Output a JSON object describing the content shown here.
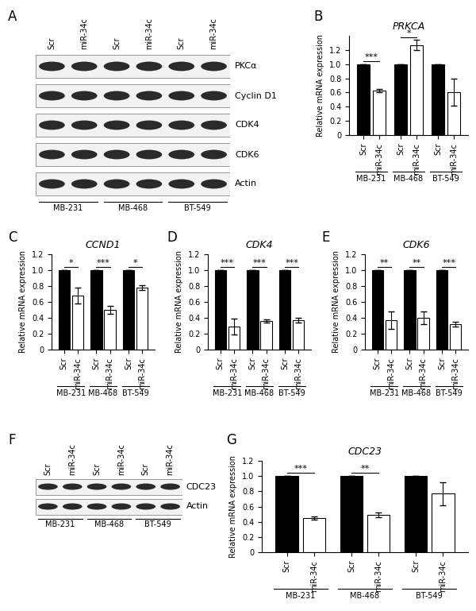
{
  "chart_data": [
    {
      "panel": "B",
      "type": "bar",
      "title": "PRKCA",
      "y_label": "Relative mRNA expression",
      "categories": [
        "MB-231",
        "MB-468",
        "BT-549"
      ],
      "series": [
        {
          "name": "Scr",
          "color": "#000000",
          "values": [
            1.0,
            1.0,
            1.0
          ],
          "errors": [
            0,
            0,
            0
          ]
        },
        {
          "name": "miR-34c",
          "color": "#ffffff",
          "values": [
            0.63,
            1.27,
            0.61
          ],
          "errors": [
            0.02,
            0.07,
            0.19
          ]
        }
      ],
      "significance": [
        "***",
        "*",
        null
      ],
      "ylim": [
        0,
        1.4
      ],
      "yticks": [
        0,
        0.2,
        0.4,
        0.6,
        0.8,
        1.0,
        1.2
      ]
    },
    {
      "panel": "C",
      "type": "bar",
      "title": "CCND1",
      "y_label": "Relative mRNA expression",
      "categories": [
        "MB-231",
        "MB-468",
        "BT-549"
      ],
      "series": [
        {
          "name": "Scr",
          "color": "#000000",
          "values": [
            1.0,
            1.0,
            1.0
          ],
          "errors": [
            0,
            0,
            0
          ]
        },
        {
          "name": "miR-34c",
          "color": "#ffffff",
          "values": [
            0.68,
            0.5,
            0.78
          ],
          "errors": [
            0.1,
            0.05,
            0.03
          ]
        }
      ],
      "significance": [
        "*",
        "***",
        "*"
      ],
      "ylim": [
        0,
        1.2
      ],
      "yticks": [
        0,
        0.2,
        0.4,
        0.6,
        0.8,
        1.0,
        1.2
      ]
    },
    {
      "panel": "D",
      "type": "bar",
      "title": "CDK4",
      "y_label": "Relative mRNA expression",
      "categories": [
        "MB-231",
        "MB-468",
        "BT-549"
      ],
      "series": [
        {
          "name": "Scr",
          "color": "#000000",
          "values": [
            1.0,
            1.0,
            1.0
          ],
          "errors": [
            0,
            0,
            0
          ]
        },
        {
          "name": "miR-34c",
          "color": "#ffffff",
          "values": [
            0.29,
            0.36,
            0.37
          ],
          "errors": [
            0.1,
            0.02,
            0.03
          ]
        }
      ],
      "significance": [
        "***",
        "***",
        "***"
      ],
      "ylim": [
        0,
        1.2
      ],
      "yticks": [
        0,
        0.2,
        0.4,
        0.6,
        0.8,
        1.0,
        1.2
      ]
    },
    {
      "panel": "E",
      "type": "bar",
      "title": "CDK6",
      "y_label": "Relative mRNA expression",
      "categories": [
        "MB-231",
        "MB-468",
        "BT-549"
      ],
      "series": [
        {
          "name": "Scr",
          "color": "#000000",
          "values": [
            1.0,
            1.0,
            1.0
          ],
          "errors": [
            0,
            0,
            0
          ]
        },
        {
          "name": "miR-34c",
          "color": "#ffffff",
          "values": [
            0.37,
            0.4,
            0.32
          ],
          "errors": [
            0.11,
            0.08,
            0.03
          ]
        }
      ],
      "significance": [
        "**",
        "**",
        "***"
      ],
      "ylim": [
        0,
        1.2
      ],
      "yticks": [
        0,
        0.2,
        0.4,
        0.6,
        0.8,
        1.0,
        1.2
      ]
    },
    {
      "panel": "G",
      "type": "bar",
      "title": "CDC23",
      "y_label": "Relative mRNA expression",
      "categories": [
        "MB-231",
        "MB-468",
        "BT-549"
      ],
      "series": [
        {
          "name": "Scr",
          "color": "#000000",
          "values": [
            1.0,
            1.0,
            1.0
          ],
          "errors": [
            0,
            0,
            0
          ]
        },
        {
          "name": "miR-34c",
          "color": "#ffffff",
          "values": [
            0.45,
            0.49,
            0.77
          ],
          "errors": [
            0.02,
            0.03,
            0.15
          ]
        }
      ],
      "significance": [
        "***",
        "**",
        null
      ],
      "ylim": [
        0,
        1.2
      ],
      "yticks": [
        0,
        0.2,
        0.4,
        0.6,
        0.8,
        1.0,
        1.2
      ]
    }
  ],
  "blots": [
    {
      "panel": "A",
      "lanes": [
        "Scr",
        "miR-34c",
        "Scr",
        "miR-34c",
        "Scr",
        "miR-34c"
      ],
      "groups": [
        "MB-231",
        "MB-468",
        "BT-549"
      ],
      "proteins": [
        "PKCα",
        "Cyclin D1",
        "CDK4",
        "CDK6",
        "Actin"
      ]
    },
    {
      "panel": "F",
      "lanes": [
        "Scr",
        "miR-34c",
        "Scr",
        "miR-34c",
        "Scr",
        "miR-34c"
      ],
      "groups": [
        "MB-231",
        "MB-468",
        "BT-549"
      ],
      "proteins": [
        "CDC23",
        "Actin"
      ]
    }
  ]
}
